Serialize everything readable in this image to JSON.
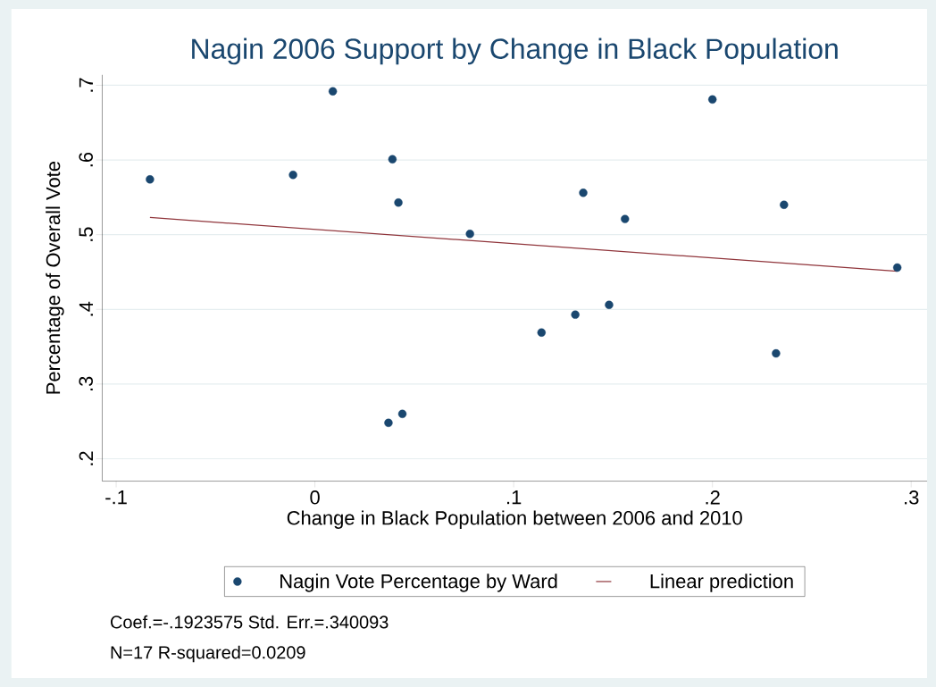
{
  "chart_data": {
    "type": "scatter",
    "title": "Nagin 2006 Support by Change in Black Population",
    "xlabel": "Change in Black Population between 2006 and 2010",
    "ylabel": "Percentage of Overall Vote",
    "series": [
      {
        "name": "Nagin Vote Percentage by Ward",
        "color": "#1a476f",
        "marker": "circle",
        "x": [
          -0.083,
          -0.011,
          0.009,
          0.039,
          0.042,
          0.037,
          0.044,
          0.078,
          0.114,
          0.131,
          0.135,
          0.148,
          0.156,
          0.2,
          0.232,
          0.236,
          0.293
        ],
        "values": [
          0.574,
          0.58,
          0.692,
          0.601,
          0.543,
          0.248,
          0.26,
          0.501,
          0.369,
          0.393,
          0.556,
          0.406,
          0.521,
          0.681,
          0.341,
          0.54,
          0.456
        ]
      },
      {
        "name": "Linear prediction",
        "type": "line",
        "color": "#90353b",
        "marker": "none",
        "x": [
          -0.083,
          0.293
        ],
        "values": [
          0.523,
          0.451
        ]
      }
    ],
    "xlim": [
      -0.107,
      0.308
    ],
    "ylim": [
      0.17,
      0.714
    ],
    "xticks": [
      {
        "value": -0.1,
        "label": "-.1"
      },
      0,
      {
        "value": 0.1,
        "label": ".1"
      },
      {
        "value": 0.2,
        "label": ".2"
      },
      {
        "value": 0.3,
        "label": ".3"
      }
    ],
    "yticks": [
      {
        "value": 0.2,
        "label": ".2"
      },
      {
        "value": 0.3,
        "label": ".3"
      },
      {
        "value": 0.4,
        "label": ".4"
      },
      {
        "value": 0.5,
        "label": ".5"
      },
      {
        "value": 0.6,
        "label": ".6"
      },
      {
        "value": 0.7,
        "label": ".7"
      }
    ],
    "grid": "y",
    "legend": "bottom",
    "annotations": [
      "Coef.=-.1923575   Std. Err.=.340093",
      "N=17   R-squared=0.0209"
    ]
  }
}
